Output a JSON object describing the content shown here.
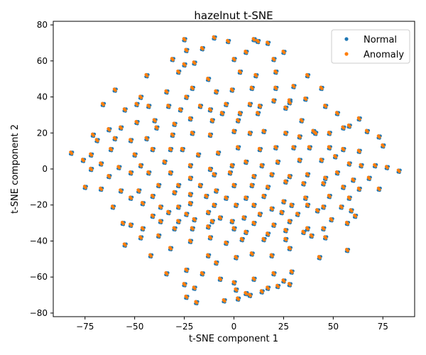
{
  "chart_data": {
    "type": "scatter",
    "title": "hazelnut t-SNE",
    "xlabel": "t-SNE component 1",
    "ylabel": "t-SNE component 2",
    "xlim": [
      -91,
      91
    ],
    "ylim": [
      -82,
      82
    ],
    "xticks": [
      -75,
      -50,
      -25,
      0,
      25,
      50,
      75
    ],
    "yticks": [
      -80,
      -60,
      -40,
      -20,
      0,
      20,
      40,
      60,
      80
    ],
    "grid": false,
    "legend_position": "top-right",
    "series": [
      {
        "name": "Normal",
        "color": "#1f77b4"
      },
      {
        "name": "Anomaly",
        "color": "#ff7f0e"
      }
    ],
    "points": [
      [
        -25,
        72
      ],
      [
        -10,
        73
      ],
      [
        -3,
        71
      ],
      [
        10,
        72
      ],
      [
        12,
        71
      ],
      [
        17,
        70
      ],
      [
        -24,
        66
      ],
      [
        -16,
        67
      ],
      [
        25,
        65
      ],
      [
        -31,
        61
      ],
      [
        -20,
        59
      ],
      [
        -25,
        58
      ],
      [
        0,
        61
      ],
      [
        6,
        65
      ],
      [
        20,
        61
      ],
      [
        -44,
        52
      ],
      [
        -28,
        54
      ],
      [
        -13,
        50
      ],
      [
        3,
        54
      ],
      [
        11,
        52
      ],
      [
        21,
        54
      ],
      [
        37,
        52
      ],
      [
        -21,
        45
      ],
      [
        -9,
        43
      ],
      [
        -1,
        44
      ],
      [
        9,
        45
      ],
      [
        21,
        45
      ],
      [
        30,
        46
      ],
      [
        -60,
        44
      ],
      [
        -47,
        40
      ],
      [
        -34,
        43
      ],
      [
        -43,
        35
      ],
      [
        -33,
        35
      ],
      [
        -24,
        40
      ],
      [
        -17,
        35
      ],
      [
        -4,
        36
      ],
      [
        8,
        36
      ],
      [
        20,
        38
      ],
      [
        28,
        38
      ],
      [
        36,
        39
      ],
      [
        -66,
        36
      ],
      [
        -55,
        33
      ],
      [
        -49,
        36
      ],
      [
        -40,
        27
      ],
      [
        -27,
        33
      ],
      [
        -12,
        33
      ],
      [
        3,
        31
      ],
      [
        13,
        35
      ],
      [
        28,
        37
      ],
      [
        44,
        45
      ],
      [
        46,
        35
      ],
      [
        -71,
        19
      ],
      [
        -63,
        22
      ],
      [
        -57,
        23
      ],
      [
        -49,
        26
      ],
      [
        -39,
        23
      ],
      [
        -30,
        25
      ],
      [
        -22,
        28
      ],
      [
        -11,
        27
      ],
      [
        -6,
        31
      ],
      [
        2,
        27
      ],
      [
        12,
        31
      ],
      [
        26,
        34
      ],
      [
        34,
        27
      ],
      [
        40,
        21
      ],
      [
        52,
        31
      ],
      [
        58,
        24
      ],
      [
        63,
        28
      ],
      [
        -82,
        9
      ],
      [
        -69,
        16
      ],
      [
        -60,
        17
      ],
      [
        -52,
        16
      ],
      [
        -44,
        17
      ],
      [
        -31,
        19
      ],
      [
        -21,
        20
      ],
      [
        -12,
        19
      ],
      [
        0,
        21
      ],
      [
        8,
        20
      ],
      [
        15,
        21
      ],
      [
        26,
        20
      ],
      [
        33,
        18
      ],
      [
        41,
        20
      ],
      [
        48,
        20
      ],
      [
        55,
        23
      ],
      [
        67,
        21
      ],
      [
        73,
        18
      ],
      [
        -72,
        8
      ],
      [
        -62,
        11
      ],
      [
        -50,
        8
      ],
      [
        -41,
        11
      ],
      [
        -32,
        11
      ],
      [
        -26,
        11
      ],
      [
        -18,
        8
      ],
      [
        -8,
        9
      ],
      [
        2,
        12
      ],
      [
        13,
        11
      ],
      [
        21,
        12
      ],
      [
        30,
        12
      ],
      [
        38,
        12
      ],
      [
        48,
        12
      ],
      [
        55,
        11
      ],
      [
        63,
        10
      ],
      [
        75,
        13
      ],
      [
        -76,
        5
      ],
      [
        -67,
        3
      ],
      [
        -58,
        1
      ],
      [
        -47,
        2
      ],
      [
        -35,
        4
      ],
      [
        -22,
        2
      ],
      [
        -12,
        0
      ],
      [
        -1,
        2
      ],
      [
        6,
        4
      ],
      [
        14,
        2
      ],
      [
        22,
        4
      ],
      [
        33,
        5
      ],
      [
        44,
        5
      ],
      [
        51,
        7
      ],
      [
        58,
        3
      ],
      [
        64,
        2
      ],
      [
        71,
        2
      ],
      [
        77,
        1
      ],
      [
        83,
        -1
      ],
      [
        -72,
        0
      ],
      [
        -63,
        -4
      ],
      [
        -52,
        -2
      ],
      [
        -43,
        -2
      ],
      [
        -32,
        -2
      ],
      [
        -22,
        -5
      ],
      [
        -10,
        -3
      ],
      [
        -2,
        -2
      ],
      [
        10,
        -4
      ],
      [
        19,
        -3
      ],
      [
        28,
        -4
      ],
      [
        37,
        -3
      ],
      [
        46,
        -5
      ],
      [
        52,
        -2
      ],
      [
        60,
        -6
      ],
      [
        68,
        -5
      ],
      [
        -67,
        -11
      ],
      [
        -57,
        -12
      ],
      [
        -48,
        -12
      ],
      [
        -38,
        -9
      ],
      [
        -28,
        -9
      ],
      [
        -17,
        -9
      ],
      [
        -9,
        -12
      ],
      [
        0,
        -9
      ],
      [
        9,
        -9
      ],
      [
        17,
        -10
      ],
      [
        26,
        -7
      ],
      [
        35,
        -8
      ],
      [
        45,
        -8
      ],
      [
        55,
        -10
      ],
      [
        63,
        -11
      ],
      [
        73,
        -11
      ],
      [
        -61,
        -21
      ],
      [
        -52,
        -16
      ],
      [
        -41,
        -15
      ],
      [
        -30,
        -13
      ],
      [
        -22,
        -14
      ],
      [
        -14,
        -15
      ],
      [
        -4,
        -16
      ],
      [
        6,
        -16
      ],
      [
        15,
        -15
      ],
      [
        25,
        -18
      ],
      [
        36,
        -16
      ],
      [
        48,
        -15
      ],
      [
        58,
        -16
      ],
      [
        -56,
        -30
      ],
      [
        -46,
        -19
      ],
      [
        -37,
        -21
      ],
      [
        -28,
        -21
      ],
      [
        -22,
        -19
      ],
      [
        -10,
        -20
      ],
      [
        1,
        -20
      ],
      [
        10,
        -20
      ],
      [
        19,
        -22
      ],
      [
        29,
        -20
      ],
      [
        37,
        -20
      ],
      [
        45,
        -21
      ],
      [
        54,
        -21
      ],
      [
        -52,
        -31
      ],
      [
        -41,
        -26
      ],
      [
        -33,
        -24
      ],
      [
        -24,
        -25
      ],
      [
        -13,
        -24
      ],
      [
        -7,
        -27
      ],
      [
        5,
        -27
      ],
      [
        13,
        -25
      ],
      [
        24,
        -24
      ],
      [
        32,
        -25
      ],
      [
        42,
        -23
      ],
      [
        49,
        -28
      ],
      [
        59,
        -23
      ],
      [
        61,
        -26
      ],
      [
        -55,
        -42
      ],
      [
        -46,
        -33
      ],
      [
        -37,
        -29
      ],
      [
        -28,
        -29
      ],
      [
        -20,
        -28
      ],
      [
        -11,
        -29
      ],
      [
        -1,
        -29
      ],
      [
        10,
        -30
      ],
      [
        20,
        -31
      ],
      [
        28,
        -29
      ],
      [
        37,
        -33
      ],
      [
        45,
        -33
      ],
      [
        57,
        -30
      ],
      [
        -47,
        -38
      ],
      [
        -38,
        -37
      ],
      [
        -30,
        -33
      ],
      [
        -21,
        -33
      ],
      [
        -13,
        -32
      ],
      [
        0,
        -33
      ],
      [
        6,
        -35
      ],
      [
        17,
        -36
      ],
      [
        26,
        -34
      ],
      [
        35,
        -35
      ],
      [
        46,
        -38
      ],
      [
        -42,
        -48
      ],
      [
        -32,
        -44
      ],
      [
        -22,
        -40
      ],
      [
        -12,
        -38
      ],
      [
        -4,
        -41
      ],
      [
        4,
        -39
      ],
      [
        15,
        -39
      ],
      [
        26,
        -39
      ],
      [
        39,
        -37
      ],
      [
        57,
        -45
      ],
      [
        -34,
        -58
      ],
      [
        -24,
        -56
      ],
      [
        -13,
        -48
      ],
      [
        -9,
        -52
      ],
      [
        1,
        -49
      ],
      [
        9,
        -47
      ],
      [
        19,
        -48
      ],
      [
        28,
        -44
      ],
      [
        43,
        -49
      ],
      [
        -25,
        -64
      ],
      [
        -20,
        -66
      ],
      [
        -16,
        -58
      ],
      [
        -7,
        -61
      ],
      [
        0,
        -63
      ],
      [
        10,
        -61
      ],
      [
        20,
        -58
      ],
      [
        25,
        -62
      ],
      [
        29,
        -57
      ],
      [
        -24,
        -71
      ],
      [
        -19,
        -74
      ],
      [
        1,
        -67
      ],
      [
        6,
        -69
      ],
      [
        17,
        -66
      ],
      [
        22,
        -65
      ],
      [
        28,
        -64
      ],
      [
        -5,
        -73
      ],
      [
        2,
        -72
      ],
      [
        8,
        -70
      ],
      [
        14,
        -68
      ],
      [
        -75,
        -10
      ]
    ]
  }
}
